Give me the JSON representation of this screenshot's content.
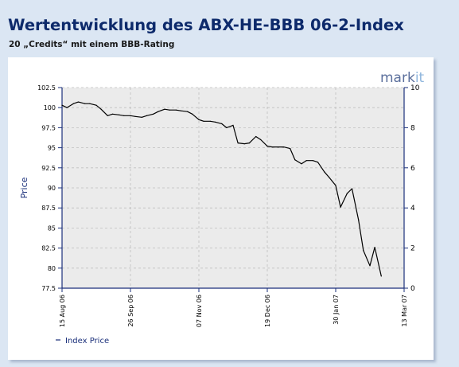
{
  "title": "Wertentwicklung des ABX-HE-BBB 06-2-Index",
  "subtitle": "20 „Credits“ mit einem BBB-Rating",
  "logo": {
    "text_main": "mark",
    "text_accent": "it"
  },
  "colors": {
    "panel_bg": "#dbe6f3",
    "title": "#0d2a6b",
    "plot_bg": "#ebebeb",
    "axis": "#1a2f7a",
    "line": "#000000",
    "logo_main": "#5b6f9c",
    "logo_accent": "#8fb6dd"
  },
  "chart_data": {
    "type": "line",
    "ylabel": "Price",
    "ylim": [
      77.5,
      102.5
    ],
    "y_ticks": [
      "102.5",
      "100",
      "97.5",
      "95",
      "92.5",
      "90",
      "87.5",
      "85",
      "82.5",
      "80",
      "77.5"
    ],
    "y2lim": [
      0,
      10
    ],
    "y2_ticks": [
      "10",
      "8",
      "6",
      "4",
      "2",
      "0"
    ],
    "x_ticks": [
      "15 Aug 06",
      "26 Sep 06",
      "07 Nov 06",
      "19 Dec 06",
      "30 Jan 07",
      "13 Mar 07"
    ],
    "grid": true,
    "legend": {
      "position": "bottom-left",
      "label": "Index Price"
    },
    "series": [
      {
        "name": "Index Price",
        "x": [
          "2006-08-15",
          "2006-08-18",
          "2006-08-22",
          "2006-08-25",
          "2006-08-29",
          "2006-09-01",
          "2006-09-05",
          "2006-09-08",
          "2006-09-12",
          "2006-09-15",
          "2006-09-19",
          "2006-09-22",
          "2006-09-26",
          "2006-09-29",
          "2006-10-03",
          "2006-10-06",
          "2006-10-10",
          "2006-10-13",
          "2006-10-17",
          "2006-10-20",
          "2006-10-24",
          "2006-10-27",
          "2006-10-31",
          "2006-11-03",
          "2006-11-07",
          "2006-11-10",
          "2006-11-14",
          "2006-11-17",
          "2006-11-21",
          "2006-11-24",
          "2006-11-28",
          "2006-12-01",
          "2006-12-05",
          "2006-12-08",
          "2006-12-12",
          "2006-12-15",
          "2006-12-19",
          "2006-12-22",
          "2006-12-26",
          "2006-12-29",
          "2007-01-02",
          "2007-01-05",
          "2007-01-09",
          "2007-01-12",
          "2007-01-16",
          "2007-01-19",
          "2007-01-23",
          "2007-01-26",
          "2007-01-30",
          "2007-02-02",
          "2007-02-06",
          "2007-02-09",
          "2007-02-13",
          "2007-02-16",
          "2007-02-20",
          "2007-02-23",
          "2007-02-27"
        ],
        "values": [
          100.3,
          100.0,
          100.5,
          100.7,
          100.5,
          100.5,
          100.3,
          99.8,
          99.0,
          99.2,
          99.1,
          99.0,
          99.0,
          98.9,
          98.8,
          99.0,
          99.2,
          99.5,
          99.8,
          99.7,
          99.7,
          99.6,
          99.5,
          99.2,
          98.5,
          98.3,
          98.3,
          98.2,
          98.0,
          97.5,
          97.8,
          95.6,
          95.5,
          95.6,
          96.4,
          96.0,
          95.2,
          95.1,
          95.1,
          95.1,
          94.9,
          93.5,
          93.0,
          93.4,
          93.4,
          93.2,
          92.0,
          91.3,
          90.3,
          87.6,
          89.3,
          89.9,
          86.0,
          82.2,
          80.3,
          82.6,
          79.0
        ]
      }
    ]
  }
}
